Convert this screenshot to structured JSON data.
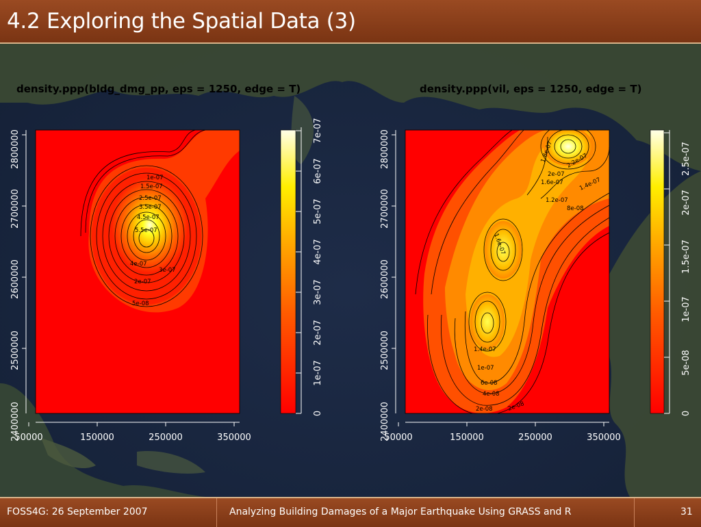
{
  "slide": {
    "title": "4.2 Exploring the Spatial Data (3)",
    "footer_left": "FOSS4G: 26 September 2007",
    "footer_center": "Analyzing Building Damages of a Major Earthquake Using GRASS and R",
    "page_number": "31"
  },
  "colors": {
    "header_bg": "#8a3f1a",
    "plot_red": "#ff0000"
  },
  "chart_data": [
    {
      "type": "heatmap",
      "title": "density.ppp(bldg_dmg_pp, eps = 1250, edge = T)",
      "x_ticks": [
        "50000",
        "150000",
        "250000",
        "350000"
      ],
      "y_ticks": [
        "2500000",
        "2600000",
        "2700000",
        "2800000"
      ],
      "y_bottom_tick": "2400000",
      "colorbar_ticks": [
        "0",
        "1e-07",
        "2e-07",
        "3e-07",
        "4e-07",
        "5e-07",
        "6e-07",
        "7e-07"
      ],
      "contour_labels": [
        "1e-07",
        "1.5e-07",
        "2.5e-07",
        "3.5e-07",
        "4.5e-07",
        "5.5e-07",
        "4e-07",
        "3e-07",
        "2e-07",
        "5e-08"
      ],
      "peaks": [
        {
          "x": 255000,
          "y": 2655000,
          "value": 7.2e-07
        }
      ]
    },
    {
      "type": "heatmap",
      "title": "density.ppp(vil, eps = 1250, edge = T)",
      "x_ticks": [
        "50000",
        "150000",
        "250000",
        "350000"
      ],
      "y_ticks": [
        "2500000",
        "2600000",
        "2700000",
        "2800000"
      ],
      "y_bottom_tick": "2400000",
      "colorbar_ticks": [
        "0",
        "5e-08",
        "1e-07",
        "1.5e-07",
        "2e-07",
        "2.5e-07"
      ],
      "contour_labels": [
        "1.8e-07",
        "2.2e-07",
        "2e-07",
        "1.6e-07",
        "1.4e-07",
        "1.2e-07",
        "8e-08",
        "1e-07",
        "6e-08",
        "4e-08",
        "2e-08"
      ],
      "peaks": [
        {
          "x": 300000,
          "y": 2790000,
          "value": 2.6e-07
        },
        {
          "x": 220000,
          "y": 2640000,
          "value": 1.7e-07
        },
        {
          "x": 180000,
          "y": 2540000,
          "value": 1.8e-07
        }
      ]
    }
  ]
}
